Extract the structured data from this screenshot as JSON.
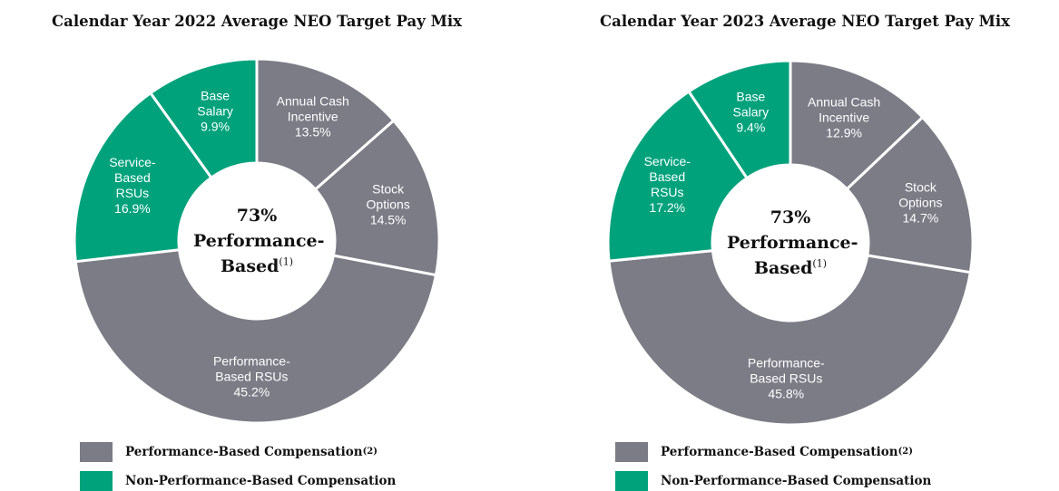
{
  "chart_data": [
    {
      "type": "pie",
      "title": "Calendar Year 2022 Average NEO Target Pay Mix",
      "categories": [
        "Annual Cash Incentive",
        "Stock Options",
        "Performance-Based RSUs",
        "Service-Based RSUs",
        "Base Salary"
      ],
      "values": [
        13.5,
        14.5,
        45.2,
        16.9,
        9.9
      ],
      "value_labels": [
        "13.5%",
        "14.5%",
        "45.2%",
        "16.9%",
        "9.9%"
      ],
      "colors": [
        "#7b7c86",
        "#7b7c86",
        "#7b7c86",
        "#00a27c",
        "#00a27c"
      ],
      "center": {
        "value": "73%",
        "text": "Performance-Based",
        "note": "(1)"
      },
      "legend": [
        {
          "name": "Performance-Based Compensation",
          "note": "(2)",
          "color": "#7b7c86"
        },
        {
          "name": "Non-Performance-Based Compensation",
          "color": "#00a27c"
        }
      ]
    },
    {
      "type": "pie",
      "title": "Calendar Year 2023 Average NEO Target Pay Mix",
      "categories": [
        "Annual Cash Incentive",
        "Stock Options",
        "Performance-Based RSUs",
        "Service-Based RSUs",
        "Base Salary"
      ],
      "values": [
        12.9,
        14.7,
        45.8,
        17.2,
        9.4
      ],
      "value_labels": [
        "12.9%",
        "14.7%",
        "45.8%",
        "17.2%",
        "9.4%"
      ],
      "colors": [
        "#7b7c86",
        "#7b7c86",
        "#7b7c86",
        "#00a27c",
        "#00a27c"
      ],
      "center": {
        "value": "73%",
        "text": "Performance-Based",
        "note": "(1)"
      },
      "legend": [
        {
          "name": "Performance-Based Compensation",
          "note": "(2)",
          "color": "#7b7c86"
        },
        {
          "name": "Non-Performance-Based Compensation",
          "color": "#00a27c"
        }
      ]
    }
  ]
}
